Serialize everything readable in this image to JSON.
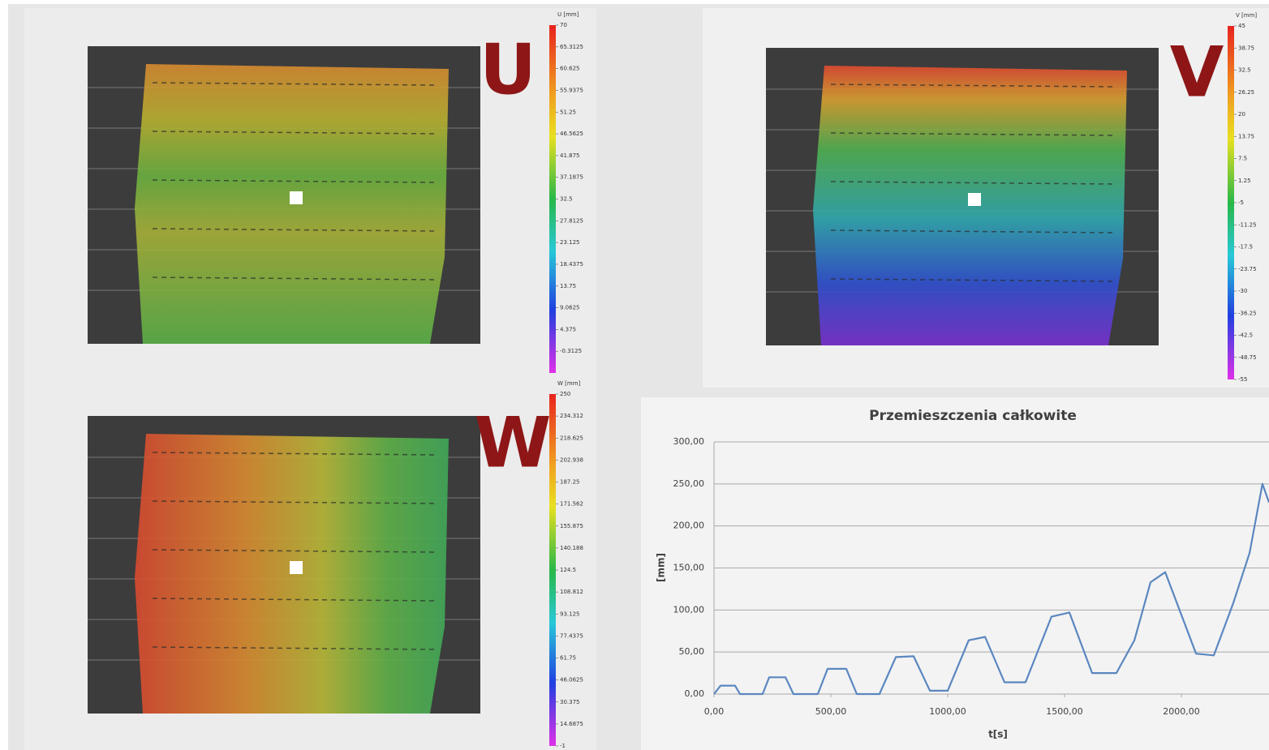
{
  "panels": [
    {
      "label": "U",
      "colorbar": {
        "title": "U [mm]",
        "lim": [
          -5,
          70
        ],
        "ticks": [
          70,
          65.3125,
          60.625,
          55.9375,
          51.25,
          46.5625,
          41.875,
          37.1875,
          32.5,
          27.8125,
          23.125,
          18.4375,
          13.75,
          9.0625,
          4.375,
          -0.3125
        ]
      }
    },
    {
      "label": "V",
      "colorbar": {
        "title": "V [mm]",
        "lim": [
          -55,
          45
        ],
        "ticks": [
          45,
          38.75,
          32.5,
          26.25,
          20,
          13.75,
          7.5,
          1.25,
          -5,
          -11.25,
          -17.5,
          -23.75,
          -30,
          -36.25,
          -42.5,
          -48.75,
          -55
        ]
      }
    },
    {
      "label": "W",
      "colorbar": {
        "title": "W [mm]",
        "lim": [
          -1,
          250
        ],
        "ticks": [
          250,
          234.312,
          218.625,
          202.938,
          187.25,
          171.562,
          155.875,
          140.188,
          124.5,
          108.812,
          93.125,
          77.4375,
          61.75,
          46.0625,
          30.375,
          14.6875,
          -1
        ]
      }
    }
  ],
  "chart_data": {
    "type": "line",
    "title": "Przemieszczenia całkowite",
    "x_label": "t[s]",
    "y_label": "[mm]",
    "x": [
      0,
      28,
      90,
      111,
      208,
      236,
      306,
      340,
      444,
      486,
      566,
      611,
      708,
      778,
      854,
      924,
      1000,
      1090,
      1160,
      1243,
      1333,
      1444,
      1521,
      1618,
      1722,
      1799,
      1868,
      1931,
      2063,
      2139,
      2222,
      2292,
      2347,
      2375
    ],
    "values": [
      0,
      10,
      10,
      0,
      0,
      20,
      20,
      0,
      0,
      30,
      30,
      0,
      0,
      44,
      45,
      4,
      4,
      64,
      68,
      14,
      14,
      92,
      97,
      25,
      25,
      64,
      133,
      145,
      48,
      46,
      108,
      168,
      250,
      228
    ],
    "color": "#5b87c0",
    "xlim": [
      0,
      2375
    ],
    "ylim": [
      0,
      300
    ],
    "xticks": [
      {
        "value": 0,
        "label": "0,00"
      },
      {
        "value": 500,
        "label": "500,00"
      },
      {
        "value": 1000,
        "label": "1000,00"
      },
      {
        "value": 1500,
        "label": "1500,00"
      },
      {
        "value": 2000,
        "label": "2000,00"
      }
    ],
    "yticks": [
      {
        "value": 0,
        "label": "0,00"
      },
      {
        "value": 50,
        "label": "50,00"
      },
      {
        "value": 100,
        "label": "100,00"
      },
      {
        "value": 150,
        "label": "150,00"
      },
      {
        "value": 200,
        "label": "200,00"
      },
      {
        "value": 250,
        "label": "250,00"
      },
      {
        "value": 300,
        "label": "300,00"
      }
    ],
    "grid": true
  }
}
